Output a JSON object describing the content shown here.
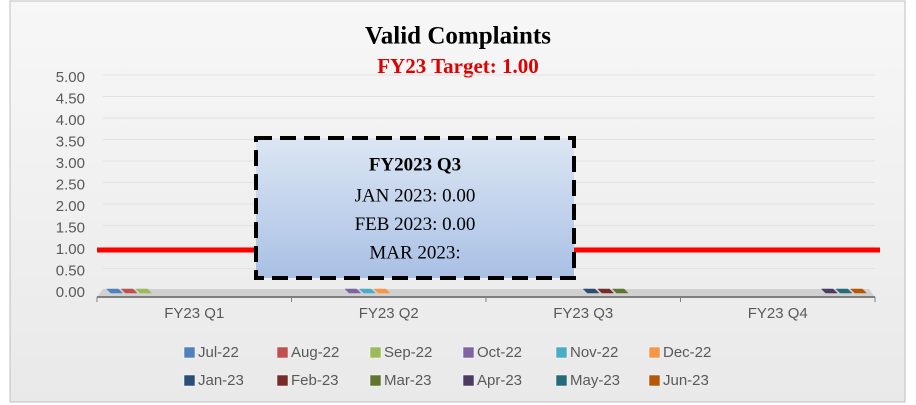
{
  "chart_data": {
    "type": "bar3d",
    "title": "Valid Complaints",
    "subtitle": "FY23 Target: 1.00",
    "target": 1,
    "categories": [
      "FY23 Q1",
      "FY23 Q2",
      "FY23 Q3",
      "FY23 Q4"
    ],
    "series": [
      {
        "name": "Jul-22",
        "color": "#4f81bd",
        "values": [
          0,
          null,
          null,
          null
        ]
      },
      {
        "name": "Aug-22",
        "color": "#c0504d",
        "values": [
          0,
          null,
          null,
          null
        ]
      },
      {
        "name": "Sep-22",
        "color": "#9bbb59",
        "values": [
          0,
          null,
          null,
          null
        ]
      },
      {
        "name": "Oct-22",
        "color": "#8064a2",
        "values": [
          null,
          0,
          null,
          null
        ]
      },
      {
        "name": "Nov-22",
        "color": "#4bacc6",
        "values": [
          null,
          0,
          null,
          null
        ]
      },
      {
        "name": "Dec-22",
        "color": "#f79646",
        "values": [
          null,
          0,
          null,
          null
        ]
      },
      {
        "name": "Jan-23",
        "color": "#2c4d75",
        "values": [
          null,
          null,
          0,
          null
        ]
      },
      {
        "name": "Feb-23",
        "color": "#772c2a",
        "values": [
          null,
          null,
          0,
          null
        ]
      },
      {
        "name": "Mar-23",
        "color": "#5f7530",
        "values": [
          null,
          null,
          0,
          null
        ]
      },
      {
        "name": "Apr-23",
        "color": "#4d3b62",
        "values": [
          null,
          null,
          null,
          0
        ]
      },
      {
        "name": "May-23",
        "color": "#276a7c",
        "values": [
          null,
          null,
          null,
          0
        ]
      },
      {
        "name": "Jun-23",
        "color": "#b65708",
        "values": [
          null,
          null,
          null,
          0
        ]
      }
    ],
    "ylim": [
      0,
      5
    ],
    "yticks": [
      {
        "value": 0,
        "label": "0.00"
      },
      {
        "value": 0.5,
        "label": "0.50"
      },
      {
        "value": 1,
        "label": "1.00"
      },
      {
        "value": 1.5,
        "label": "1.50"
      },
      {
        "value": 2,
        "label": "2.00"
      },
      {
        "value": 2.5,
        "label": "2.50"
      },
      {
        "value": 3,
        "label": "3.00"
      },
      {
        "value": 3.5,
        "label": "3.50"
      },
      {
        "value": 4,
        "label": "4.00"
      },
      {
        "value": 4.5,
        "label": "4.50"
      },
      {
        "value": 5,
        "label": "5.00"
      }
    ],
    "grid": true,
    "annotation": {
      "title": "FY2023 Q3",
      "lines": [
        "JAN 2023: 0.00",
        "FEB 2023: 0.00",
        "MAR 2023:"
      ]
    }
  }
}
